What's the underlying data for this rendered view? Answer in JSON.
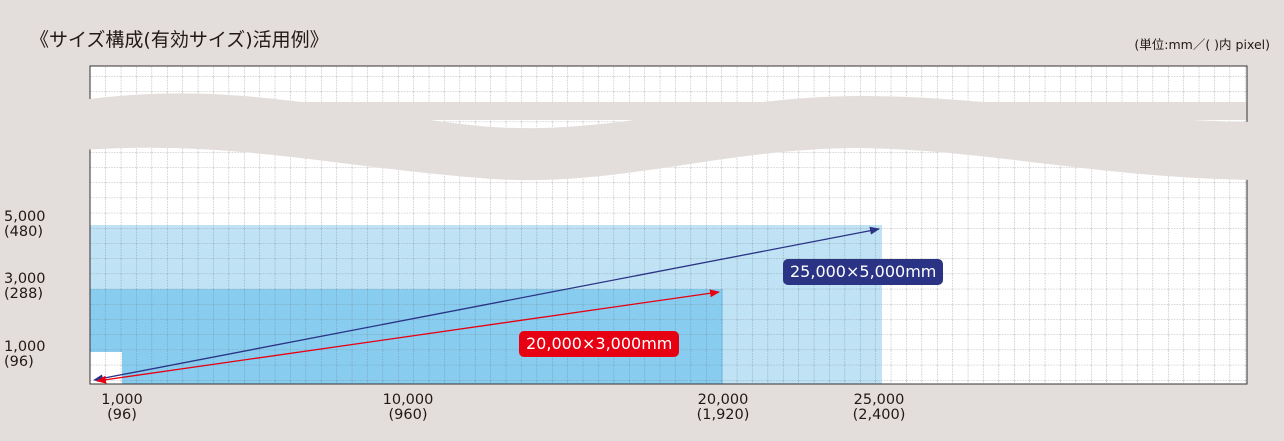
{
  "title": "《サイズ構成(有効サイズ)活用例》",
  "unit_note": "(単位:mm／( )内 pixel)",
  "y_labels": [
    {
      "mm": "5,000",
      "px": "(480)"
    },
    {
      "mm": "3,000",
      "px": "(288)"
    },
    {
      "mm": "1,000",
      "px": "(96)"
    }
  ],
  "x_labels": [
    {
      "mm": "1,000",
      "px": "(96)"
    },
    {
      "mm": "10,000",
      "px": "(960)"
    },
    {
      "mm": "20,000",
      "px": "(1,920)"
    },
    {
      "mm": "25,000",
      "px": "(2,400)"
    }
  ],
  "examples": [
    {
      "label": "25,000×5,000mm",
      "width_mm": 25000,
      "height_mm": 5000,
      "color": "#2a3384"
    },
    {
      "label": "20,000×3,000mm",
      "width_mm": 20000,
      "height_mm": 3000,
      "color": "#e60012"
    }
  ],
  "colors": {
    "background": "#e3dedb",
    "area_large": "#bfe2f5",
    "area_medium": "#88cdf0",
    "area_small": "#ffffff",
    "grid_line": "#555555"
  }
}
